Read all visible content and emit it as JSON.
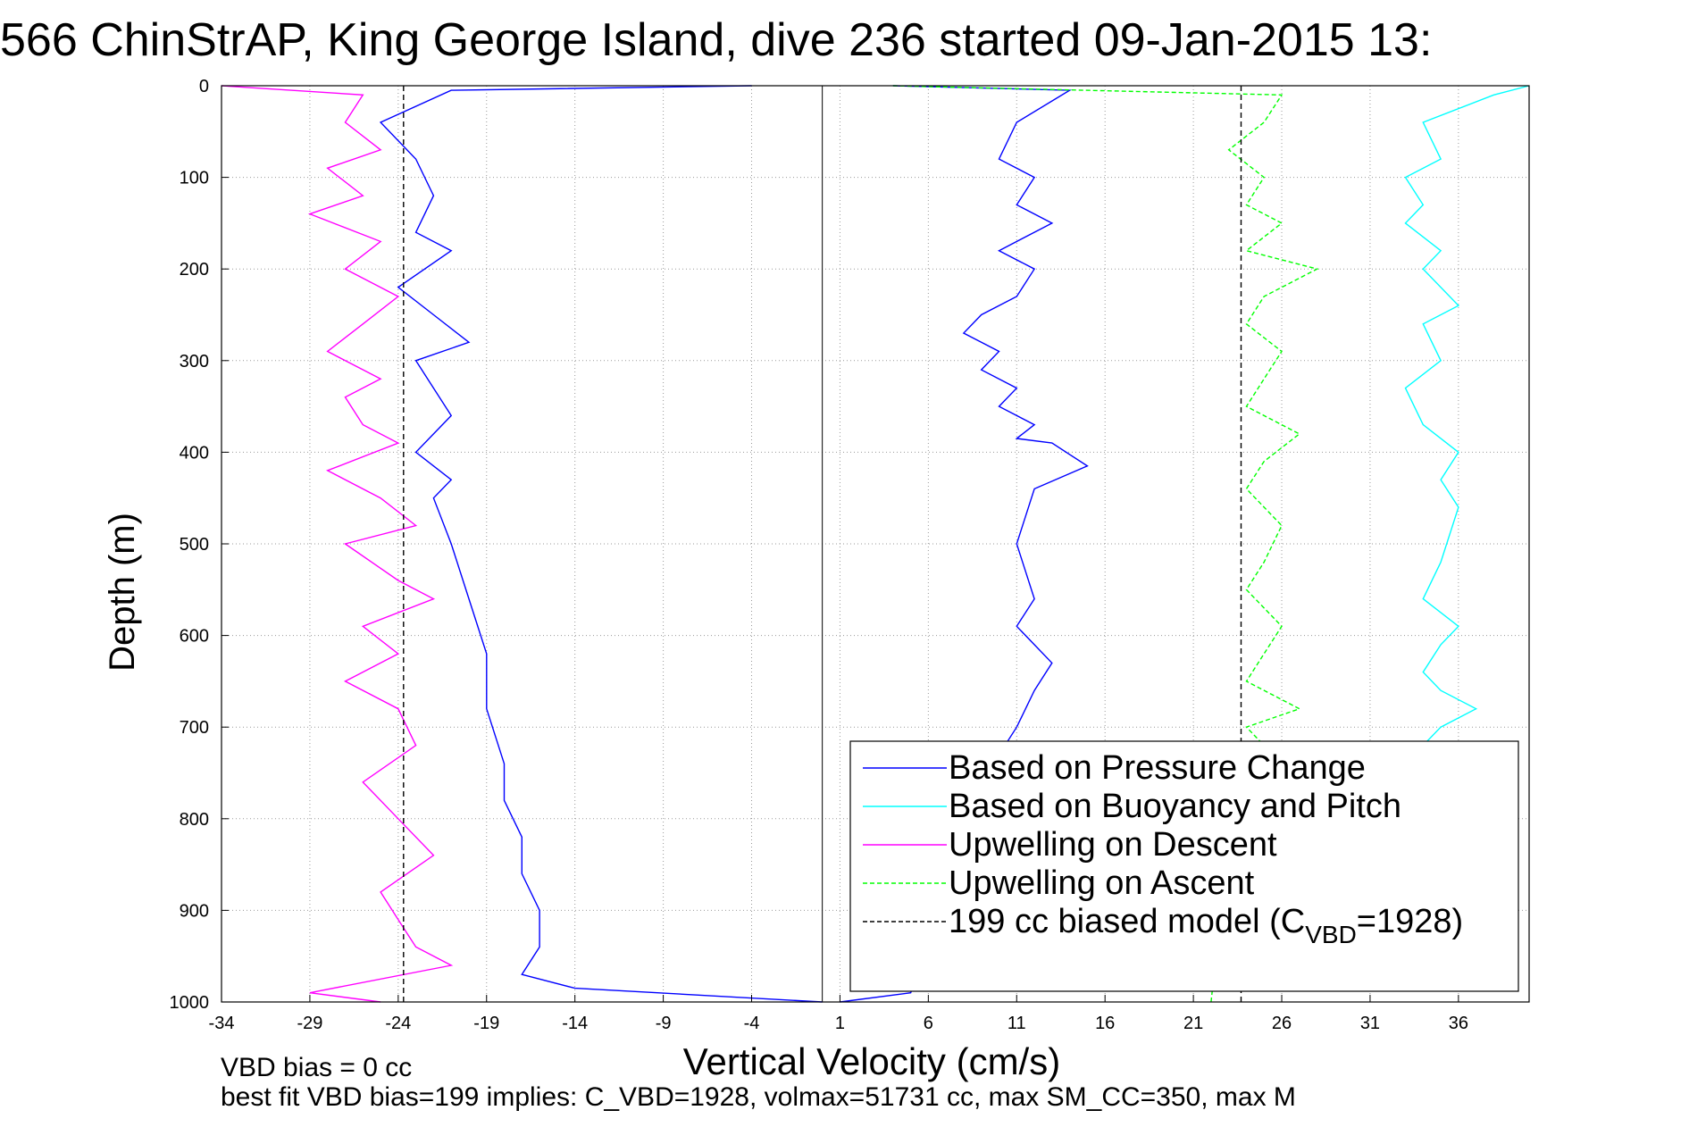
{
  "colors": {
    "pressure": "#0000ff",
    "buoyancy": "#00ffff",
    "upwelling_descent": "#ff00ff",
    "upwelling_ascent": "#00ff00",
    "model": "#000000",
    "grid": "#999999"
  },
  "chart_data": {
    "type": "line",
    "title": "566 ChinStrAP, King George Island, dive 236 started 09-Jan-2015 13:",
    "xlabel": "Vertical Velocity (cm/s)",
    "ylabel": "Depth (m)",
    "xlim": [
      -34,
      40
    ],
    "ylim": [
      0,
      1000
    ],
    "y_reversed": true,
    "grid": true,
    "x_ticks": [
      -34,
      -29,
      -24,
      -19,
      -14,
      -9,
      -4,
      1,
      6,
      11,
      16,
      21,
      26,
      31,
      36
    ],
    "y_ticks": [
      0,
      100,
      200,
      300,
      400,
      500,
      600,
      700,
      800,
      900,
      1000
    ],
    "x_tick_labels": [
      "-34",
      "-29",
      "-24",
      "-19",
      "-14",
      "-9",
      "-4",
      "1",
      "6",
      "11",
      "16",
      "21",
      "26",
      "31",
      "36"
    ],
    "y_tick_labels": [
      "0",
      "100",
      "200",
      "300",
      "400",
      "500",
      "600",
      "700",
      "800",
      "900",
      "1000"
    ],
    "zero_line_x": 0,
    "legend_position": "lower-right",
    "series": [
      {
        "key": "pressure_descent",
        "color_key": "pressure",
        "style": "solid",
        "x": [
          -4,
          -21,
          -25,
          -23,
          -22,
          -23,
          -21,
          -24,
          -22,
          -20,
          -23,
          -22,
          -21,
          -22,
          -23,
          -21,
          -22,
          -21,
          -20,
          -19,
          -19,
          -18,
          -18,
          -17,
          -17,
          -16,
          -16,
          -17,
          -14,
          0
        ],
        "y": [
          0,
          5,
          40,
          80,
          120,
          160,
          180,
          220,
          250,
          280,
          300,
          330,
          360,
          380,
          400,
          430,
          450,
          500,
          560,
          620,
          680,
          740,
          780,
          820,
          860,
          900,
          940,
          970,
          985,
          1000
        ]
      },
      {
        "key": "pressure_ascent",
        "color_key": "pressure",
        "style": "solid",
        "x": [
          4,
          14,
          11,
          10,
          12,
          11,
          13,
          10,
          12,
          11,
          9,
          8,
          10,
          9,
          11,
          10,
          12,
          11,
          13,
          15,
          12,
          11,
          12,
          11,
          13,
          12,
          11,
          10,
          9,
          5,
          1
        ],
        "y": [
          0,
          5,
          40,
          80,
          100,
          130,
          150,
          180,
          200,
          230,
          250,
          270,
          290,
          310,
          330,
          350,
          370,
          385,
          390,
          415,
          440,
          500,
          560,
          590,
          630,
          660,
          700,
          730,
          800,
          990,
          1000
        ]
      },
      {
        "key": "buoyancy_pitch",
        "color_key": "buoyancy",
        "style": "solid",
        "x": [
          40,
          38,
          34,
          35,
          33,
          34,
          33,
          35,
          34,
          36,
          34,
          35,
          33,
          34,
          36,
          35,
          36,
          35,
          34,
          36,
          35,
          34,
          35,
          37,
          35,
          34,
          33,
          34,
          34
        ],
        "y": [
          0,
          10,
          40,
          80,
          100,
          130,
          150,
          180,
          200,
          240,
          260,
          300,
          330,
          370,
          400,
          430,
          460,
          520,
          560,
          590,
          610,
          640,
          660,
          680,
          700,
          720,
          750,
          760,
          780
        ]
      },
      {
        "key": "upwelling_descent",
        "color_key": "upwelling_descent",
        "style": "solid",
        "x": [
          -34,
          -26,
          -27,
          -25,
          -28,
          -26,
          -29,
          -25,
          -27,
          -24,
          -26,
          -28,
          -25,
          -27,
          -26,
          -24,
          -28,
          -25,
          -23,
          -27,
          -24,
          -22,
          -26,
          -24,
          -27,
          -24,
          -23,
          -26,
          -24,
          -22,
          -25,
          -24,
          -23,
          -21,
          -29,
          -25
        ],
        "y": [
          0,
          10,
          40,
          70,
          90,
          120,
          140,
          170,
          200,
          230,
          260,
          290,
          320,
          340,
          370,
          390,
          420,
          450,
          480,
          500,
          540,
          560,
          590,
          620,
          650,
          680,
          720,
          760,
          800,
          840,
          880,
          910,
          940,
          960,
          990,
          1000
        ]
      },
      {
        "key": "upwelling_ascent",
        "color_key": "upwelling_ascent",
        "style": "dashed",
        "x": [
          4,
          26,
          25,
          23,
          25,
          24,
          26,
          24,
          28,
          25,
          24,
          26,
          25,
          24,
          27,
          25,
          24,
          26,
          25,
          24,
          26,
          25,
          24,
          27,
          24,
          25,
          26,
          24,
          23,
          22
        ],
        "y": [
          0,
          10,
          40,
          70,
          100,
          130,
          150,
          180,
          200,
          230,
          260,
          290,
          320,
          350,
          380,
          410,
          440,
          480,
          520,
          550,
          590,
          620,
          650,
          680,
          700,
          720,
          740,
          780,
          820,
          1000
        ]
      },
      {
        "key": "biased_model",
        "color_key": "model",
        "style": "dashed",
        "x": [
          -23.7,
          -23.7
        ],
        "y": [
          0,
          1000
        ]
      },
      {
        "key": "biased_model_ascent",
        "color_key": "model",
        "style": "dashed",
        "x": [
          23.7,
          23.7
        ],
        "y": [
          0,
          1000
        ]
      }
    ],
    "legend": [
      {
        "label": "Based on Pressure Change",
        "color_key": "pressure",
        "style": "solid"
      },
      {
        "label": "Based on Buoyancy and Pitch",
        "color_key": "buoyancy",
        "style": "solid"
      },
      {
        "label": "Upwelling on Descent",
        "color_key": "upwelling_descent",
        "style": "solid"
      },
      {
        "label": "Upwelling on Ascent",
        "color_key": "upwelling_ascent",
        "style": "dashed"
      },
      {
        "label": "199 cc biased model (C",
        "sub": "VBD",
        "suffix": "=1928)",
        "color_key": "model",
        "style": "dashed"
      }
    ],
    "annotations": {
      "vbd_bias": "VBD bias = 0 cc",
      "best_fit": "best fit VBD bias=199 implies: C_VBD=1928, volmax=51731 cc, max SM_CC=350, max M"
    }
  }
}
